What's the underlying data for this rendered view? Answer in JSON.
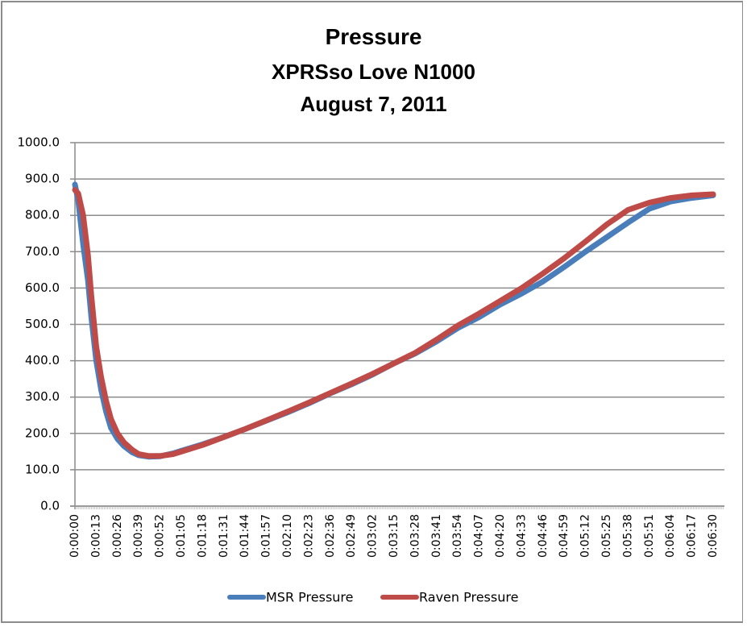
{
  "chart_data": {
    "type": "line",
    "title": "Pressure",
    "subtitle": "XPRSso Love N1000",
    "date": "August 7, 2011",
    "xlabel": "",
    "ylabel": "",
    "ylim": [
      0,
      1000
    ],
    "xlim_seconds": [
      0,
      390
    ],
    "y_ticks": [
      "0.0",
      "100.0",
      "200.0",
      "300.0",
      "400.0",
      "500.0",
      "600.0",
      "700.0",
      "800.0",
      "900.0",
      "1000.0"
    ],
    "x_tick_labels": [
      "0:00:00",
      "0:00:13",
      "0:00:26",
      "0:00:39",
      "0:00:52",
      "0:01:05",
      "0:01:18",
      "0:01:31",
      "0:01:44",
      "0:01:57",
      "0:02:10",
      "0:02:23",
      "0:02:36",
      "0:02:49",
      "0:03:02",
      "0:03:15",
      "0:03:28",
      "0:03:41",
      "0:03:54",
      "0:04:07",
      "0:04:20",
      "0:04:33",
      "0:04:46",
      "0:04:59",
      "0:05:12",
      "0:05:25",
      "0:05:38",
      "0:05:51",
      "0:06:04",
      "0:06:17",
      "0:06:30"
    ],
    "grid": true,
    "legend": "bottom",
    "x_seconds": [
      0,
      2,
      5,
      8,
      10,
      13,
      16,
      19,
      22,
      26,
      30,
      35,
      39,
      45,
      52,
      60,
      65,
      78,
      91,
      104,
      117,
      130,
      143,
      156,
      169,
      182,
      195,
      208,
      221,
      234,
      247,
      260,
      273,
      286,
      299,
      312,
      325,
      338,
      351,
      364,
      377,
      390
    ],
    "series": [
      {
        "name": "MSR Pressure",
        "color": "#4a7ebb",
        "values": [
          885,
          840,
          720,
          620,
          520,
          400,
          320,
          260,
          215,
          185,
          165,
          148,
          140,
          136,
          137,
          145,
          152,
          170,
          190,
          212,
          235,
          258,
          283,
          310,
          335,
          362,
          393,
          420,
          453,
          490,
          520,
          555,
          585,
          618,
          658,
          700,
          740,
          780,
          818,
          838,
          848,
          855
        ]
      },
      {
        "name": "Raven Pressure",
        "color": "#be4b48",
        "values": [
          870,
          860,
          800,
          690,
          580,
          440,
          355,
          290,
          240,
          200,
          175,
          155,
          143,
          138,
          138,
          143,
          150,
          168,
          190,
          212,
          236,
          260,
          285,
          311,
          337,
          364,
          393,
          422,
          458,
          497,
          530,
          565,
          600,
          640,
          682,
          728,
          775,
          815,
          835,
          848,
          855,
          858
        ]
      }
    ]
  }
}
